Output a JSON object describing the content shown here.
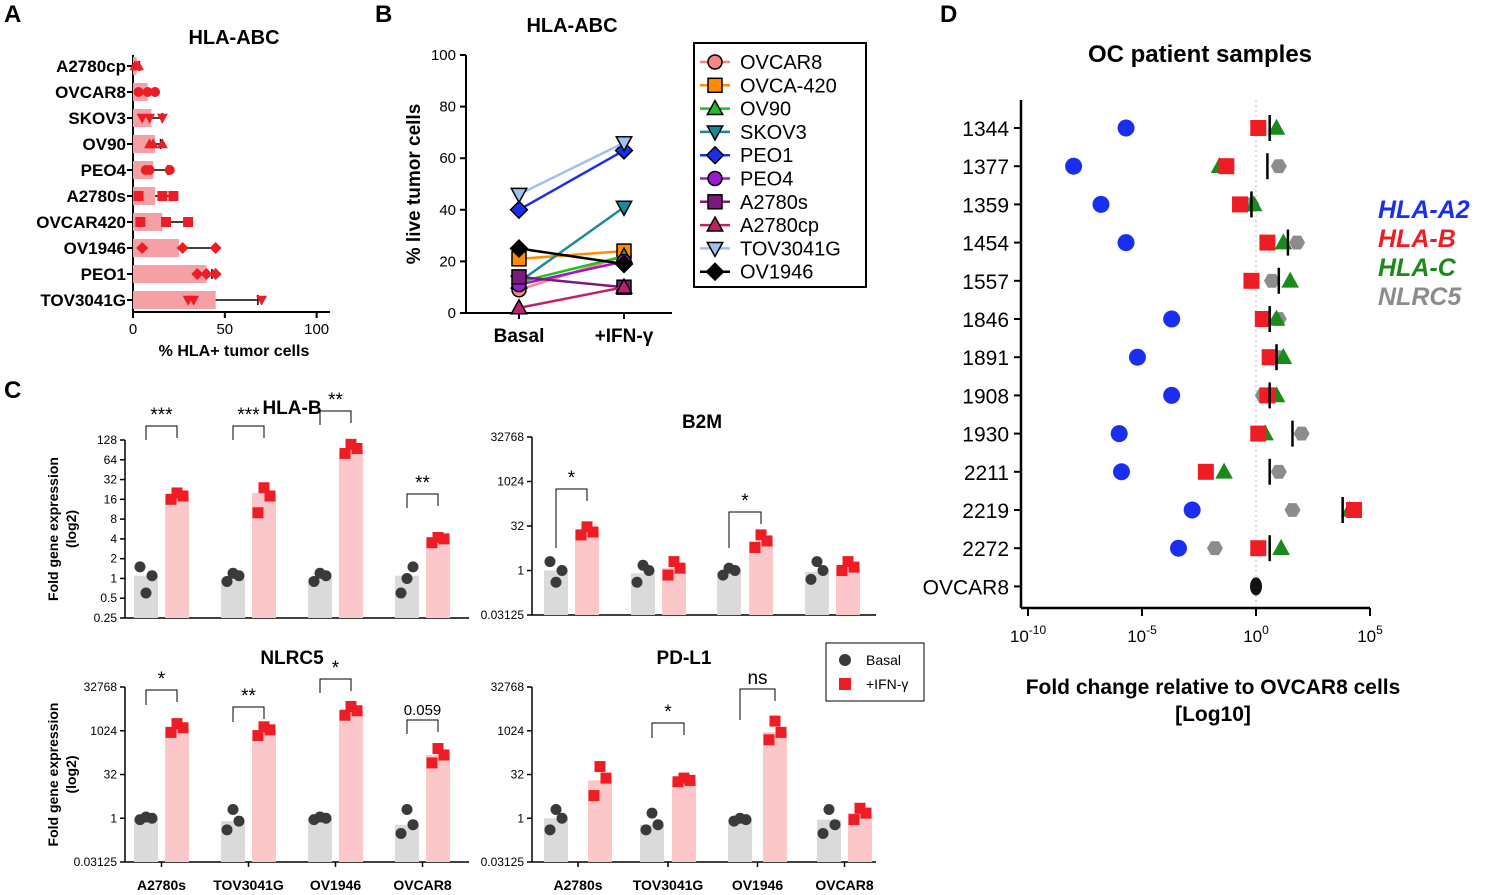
{
  "panel_letters": {
    "a": "A",
    "b": "B",
    "c": "C",
    "d": "D"
  },
  "colors": {
    "red": "#ee1c24",
    "pink": "#f4a0a4",
    "gray": "#dadada",
    "dark": "#3a3a3a",
    "blue": "#1a2ef0",
    "green": "#1a8a1a",
    "nlrc5": "#8c8c8c"
  },
  "chart_data": [
    {
      "id": "A",
      "type": "bar",
      "orientation": "horizontal",
      "title": "HLA-ABC",
      "xlabel": "% HLA+ tumor cells",
      "xlim": [
        0,
        110
      ],
      "xticks": [
        "0",
        "50",
        "100"
      ],
      "categories": [
        "A2780cp",
        "OVCAR8",
        "SKOV3",
        "OV90",
        "PEO4",
        "A2780s",
        "OVCAR420",
        "OV1946",
        "PEO1",
        "TOV3041G"
      ],
      "values": [
        2,
        8,
        10,
        12,
        11,
        12,
        16,
        25,
        40,
        45
      ],
      "errors": [
        1.5,
        4,
        6,
        3,
        8,
        10,
        14,
        20,
        3,
        23
      ],
      "points": [
        [
          1,
          2,
          3
        ],
        [
          3,
          8,
          12
        ],
        [
          5,
          9,
          16
        ],
        [
          9,
          11,
          16
        ],
        [
          7,
          9,
          20
        ],
        [
          3,
          16,
          22
        ],
        [
          4,
          18,
          30
        ],
        [
          5,
          27,
          45
        ],
        [
          35,
          40,
          45
        ],
        [
          30,
          33,
          70
        ]
      ],
      "markers": [
        "triangle",
        "circle",
        "triangle-down",
        "triangle",
        "circle",
        "square",
        "square",
        "diamond",
        "diamond",
        "triangle-down"
      ]
    },
    {
      "id": "B",
      "type": "line",
      "title": "HLA-ABC",
      "ylabel": "% live tumor cells",
      "ylim": [
        0,
        100
      ],
      "yticks": [
        "0",
        "20",
        "40",
        "60",
        "80",
        "100"
      ],
      "categories": [
        "Basal",
        "+IFN-γ"
      ],
      "series": [
        {
          "name": "OVCAR8",
          "values": [
            9,
            22
          ],
          "color": "#f58686",
          "marker": "circle"
        },
        {
          "name": "OVCA-420",
          "values": [
            21,
            24
          ],
          "color": "#ff8c00",
          "marker": "square"
        },
        {
          "name": "OV90",
          "values": [
            12,
            22
          ],
          "color": "#1fbf1f",
          "marker": "triangle"
        },
        {
          "name": "SKOV3",
          "values": [
            12,
            41
          ],
          "color": "#1a8a9a",
          "marker": "triangle-down"
        },
        {
          "name": "PEO1",
          "values": [
            40,
            63
          ],
          "color": "#1a2ef0",
          "marker": "diamond"
        },
        {
          "name": "PEO4",
          "values": [
            11,
            20
          ],
          "color": "#9a1ad0",
          "marker": "circle"
        },
        {
          "name": "A2780s",
          "values": [
            14,
            10
          ],
          "color": "#7a1a7a",
          "marker": "square"
        },
        {
          "name": "A2780cp",
          "values": [
            2,
            10
          ],
          "color": "#c0226a",
          "marker": "triangle"
        },
        {
          "name": "TOV3041G",
          "values": [
            46,
            66
          ],
          "color": "#9fc1ef",
          "marker": "triangle-down"
        },
        {
          "name": "OV1946",
          "values": [
            25,
            19
          ],
          "color": "#000000",
          "marker": "diamond"
        }
      ]
    },
    {
      "id": "C-HLA-B",
      "type": "bar",
      "title": "HLA-B",
      "ylabel": "Fold gene expression (log2)",
      "yscale": "log2",
      "ylim_log2": [
        -2,
        7
      ],
      "yticks": [
        "128",
        "64",
        "32",
        "16",
        "8",
        "4",
        "2",
        "1",
        "0.5",
        "0.25"
      ],
      "categories": [
        "A2780s",
        "TOV3041G",
        "OV1946",
        "OVCAR8"
      ],
      "series": [
        {
          "name": "Basal",
          "values": [
            1.1,
            1.0,
            1.0,
            1.1
          ]
        },
        {
          "name": "+IFN-γ",
          "values": [
            17,
            20,
            90,
            4
          ]
        }
      ],
      "points": [
        [
          [
            1.5,
            1.1,
            0.6
          ],
          [
            16,
            18,
            20
          ]
        ],
        [
          [
            0.9,
            1.1,
            1.2
          ],
          [
            10,
            18,
            24
          ]
        ],
        [
          [
            0.9,
            1.1,
            1.2
          ],
          [
            80,
            95,
            110
          ]
        ],
        [
          [
            0.6,
            1.5,
            1.0
          ],
          [
            3.5,
            4,
            4.2
          ]
        ]
      ],
      "significance": [
        "***",
        "***",
        "**",
        "**"
      ]
    },
    {
      "id": "C-B2M",
      "type": "bar",
      "title": "B2M",
      "yscale": "log2",
      "ylim_log2": [
        -5,
        15
      ],
      "yticks": [
        "32768",
        "1024",
        "32",
        "1",
        "0.03125"
      ],
      "categories": [
        "A2780s",
        "TOV3041G",
        "OV1946",
        "OVCAR8"
      ],
      "series": [
        {
          "name": "Basal",
          "values": [
            1.0,
            0.8,
            0.9,
            0.9
          ]
        },
        {
          "name": "+IFN-γ",
          "values": [
            22,
            1.2,
            10,
            1.3
          ]
        }
      ],
      "points": [
        [
          [
            2,
            1,
            0.4
          ],
          [
            16,
            20,
            30
          ]
        ],
        [
          [
            0.4,
            1,
            1.5
          ],
          [
            0.7,
            1.2,
            2
          ]
        ],
        [
          [
            0.7,
            1,
            1.2
          ],
          [
            6,
            10,
            16
          ]
        ],
        [
          [
            0.5,
            1,
            2
          ],
          [
            1,
            1.3,
            2
          ]
        ]
      ],
      "significance": [
        "*",
        "",
        "*",
        ""
      ]
    },
    {
      "id": "C-NLRC5",
      "type": "bar",
      "title": "NLRC5",
      "ylabel": "Fold gene expression (log2)",
      "yscale": "log2",
      "ylim_log2": [
        -5,
        15
      ],
      "yticks": [
        "32768",
        "1024",
        "32",
        "1",
        "0.03125"
      ],
      "categories": [
        "A2780s",
        "TOV3041G",
        "OV1946",
        "OVCAR8"
      ],
      "series": [
        {
          "name": "Basal",
          "values": [
            1.0,
            0.8,
            1.0,
            0.6
          ]
        },
        {
          "name": "+IFN-γ",
          "values": [
            1200,
            1000,
            5000,
            150
          ]
        }
      ],
      "points": [
        [
          [
            0.9,
            1,
            1.1
          ],
          [
            900,
            1300,
            1800
          ]
        ],
        [
          [
            0.4,
            0.8,
            2
          ],
          [
            700,
            1100,
            1400
          ]
        ],
        [
          [
            0.9,
            1,
            1.1
          ],
          [
            3500,
            5000,
            7000
          ]
        ],
        [
          [
            0.3,
            0.6,
            2
          ],
          [
            80,
            150,
            250
          ]
        ]
      ],
      "significance": [
        "*",
        "**",
        "*",
        "0.059"
      ]
    },
    {
      "id": "C-PD-L1",
      "type": "bar",
      "title": "PD-L1",
      "yscale": "log2",
      "ylim_log2": [
        -5,
        15
      ],
      "yticks": [
        "32768",
        "1024",
        "32",
        "1",
        "0.03125"
      ],
      "categories": [
        "A2780s",
        "TOV3041G",
        "OV1946",
        "OVCAR8"
      ],
      "series": [
        {
          "name": "Basal",
          "values": [
            1.0,
            0.6,
            0.9,
            0.9
          ]
        },
        {
          "name": "+IFN-γ",
          "values": [
            20,
            20,
            900,
            1.5
          ]
        }
      ],
      "points": [
        [
          [
            0.4,
            1,
            2
          ],
          [
            6,
            24,
            60
          ]
        ],
        [
          [
            0.4,
            0.6,
            1.5
          ],
          [
            18,
            20,
            24
          ]
        ],
        [
          [
            0.8,
            0.9,
            1.0
          ],
          [
            500,
            900,
            2200
          ]
        ],
        [
          [
            0.3,
            0.6,
            2
          ],
          [
            0.9,
            1.5,
            2.2
          ]
        ]
      ],
      "significance": [
        "",
        "*",
        "ns",
        ""
      ]
    },
    {
      "id": "D",
      "type": "scatter",
      "title": "OC patient samples",
      "xlabel": "Fold change relative to OVCAR8 cells [Log10]",
      "xscale": "log10",
      "xlim_log10": [
        -10,
        5
      ],
      "categories": [
        "1344",
        "1377",
        "1359",
        "1454",
        "1557",
        "1846",
        "1891",
        "1908",
        "1930",
        "2211",
        "2219",
        "2272",
        "OVCAR8"
      ],
      "series": [
        {
          "name": "HLA-A2",
          "color": "#1a2ef0",
          "marker": "circle",
          "values_log10": [
            -5.7,
            -8.0,
            -6.8,
            -5.7,
            null,
            -3.7,
            -5.2,
            -3.7,
            -6.0,
            -5.9,
            -2.8,
            -3.4,
            0
          ]
        },
        {
          "name": "HLA-B",
          "color": "#ee1c24",
          "marker": "square",
          "values_log10": [
            0.1,
            -1.3,
            -0.7,
            0.5,
            -0.2,
            0.3,
            0.6,
            0.5,
            0.1,
            -2.2,
            4.3,
            0.1,
            0
          ]
        },
        {
          "name": "HLA-C",
          "color": "#1a8a1a",
          "marker": "triangle",
          "values_log10": [
            0.9,
            -1.6,
            -0.1,
            1.2,
            1.5,
            0.9,
            1.2,
            0.9,
            0.4,
            -1.4,
            4.1,
            1.1,
            0
          ]
        },
        {
          "name": "NLRC5",
          "color": "#8c8c8c",
          "marker": "hexagon",
          "values_log10": [
            0.1,
            1.0,
            -0.2,
            1.8,
            0.7,
            1.0,
            1.0,
            0.3,
            2.0,
            1.0,
            1.6,
            -1.8,
            0
          ]
        }
      ],
      "median_log10": [
        0.6,
        0.5,
        -0.2,
        1.4,
        1.0,
        0.6,
        0.9,
        0.6,
        1.6,
        0.6,
        3.8,
        0.6,
        0
      ]
    }
  ],
  "legend_c": {
    "basal": "Basal",
    "ifn": "+IFN-γ"
  },
  "d_tick_base": "10",
  "d_tick_exps": [
    "-10",
    "-5",
    "0",
    "5"
  ]
}
